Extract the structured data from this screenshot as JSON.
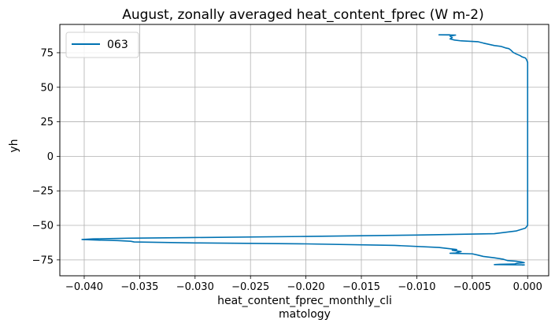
{
  "chart_data": {
    "type": "line",
    "title": "August, zonally averaged heat_content_fprec (W m-2)",
    "xlabel_lines": [
      "heat_content_fprec_monthly_cli",
      "matology"
    ],
    "ylabel": "yh",
    "xlim": [
      -0.0422,
      0.0019
    ],
    "ylim": [
      -86.5,
      95.5
    ],
    "xticks": [
      -0.04,
      -0.035,
      -0.03,
      -0.025,
      -0.02,
      -0.015,
      -0.01,
      -0.005,
      0.0
    ],
    "xtick_labels": [
      "−0.040",
      "−0.035",
      "−0.030",
      "−0.025",
      "−0.020",
      "−0.015",
      "−0.010",
      "−0.005",
      "0.000"
    ],
    "yticks": [
      -75,
      -50,
      -25,
      0,
      25,
      50,
      75
    ],
    "ytick_labels": [
      "−75",
      "−50",
      "−25",
      "0",
      "25",
      "50",
      "75"
    ],
    "grid": true,
    "legend_placement": "upper-left",
    "series": [
      {
        "name": "063",
        "color": "#0072b2",
        "points": [
          [
            -0.007,
            88.0
          ],
          [
            -0.008,
            88.0
          ],
          [
            -0.0065,
            87.8
          ],
          [
            -0.007,
            87.0
          ],
          [
            -0.0068,
            86.0
          ],
          [
            -0.007,
            85.0
          ],
          [
            -0.0066,
            84.2
          ],
          [
            -0.006,
            83.6
          ],
          [
            -0.0045,
            83.0
          ],
          [
            -0.004,
            82.0
          ],
          [
            -0.003,
            80.2
          ],
          [
            -0.0024,
            79.6
          ],
          [
            -0.002,
            78.5
          ],
          [
            -0.0017,
            78.0
          ],
          [
            -0.0015,
            76.8
          ],
          [
            -0.0013,
            75.2
          ],
          [
            -0.001,
            74.0
          ],
          [
            -0.0007,
            73.0
          ],
          [
            -0.0005,
            72.0
          ],
          [
            -0.0002,
            71.2
          ],
          [
            -0.0001,
            70.0
          ],
          [
            0.0,
            68.0
          ],
          [
            0.0,
            60.0
          ],
          [
            0.0,
            40.0
          ],
          [
            0.0,
            20.0
          ],
          [
            0.0,
            0.0
          ],
          [
            0.0,
            -20.0
          ],
          [
            0.0,
            -40.0
          ],
          [
            0.0,
            -50.0
          ],
          [
            -0.0002,
            -52.0
          ],
          [
            -0.001,
            -54.0
          ],
          [
            -0.003,
            -56.0
          ],
          [
            -0.01,
            -57.0
          ],
          [
            -0.02,
            -58.0
          ],
          [
            -0.03,
            -58.8
          ],
          [
            -0.036,
            -59.3
          ],
          [
            -0.0392,
            -59.8
          ],
          [
            -0.0402,
            -60.2
          ],
          [
            -0.039,
            -60.6
          ],
          [
            -0.037,
            -61.0
          ],
          [
            -0.0358,
            -61.5
          ],
          [
            -0.0355,
            -62.0
          ],
          [
            -0.03,
            -62.7
          ],
          [
            -0.02,
            -63.4
          ],
          [
            -0.012,
            -64.5
          ],
          [
            -0.008,
            -66.0
          ],
          [
            -0.0064,
            -67.5
          ],
          [
            -0.0068,
            -68.0
          ],
          [
            -0.006,
            -69.0
          ],
          [
            -0.0065,
            -70.0
          ],
          [
            -0.007,
            -70.2
          ],
          [
            -0.005,
            -70.6
          ],
          [
            -0.0045,
            -71.5
          ],
          [
            -0.004,
            -72.5
          ],
          [
            -0.003,
            -73.5
          ],
          [
            -0.0022,
            -74.5
          ],
          [
            -0.0018,
            -75.5
          ],
          [
            -0.001,
            -76.0
          ],
          [
            -0.0005,
            -76.6
          ],
          [
            -0.0003,
            -77.0
          ],
          [
            -0.001,
            -77.5
          ],
          [
            -0.0012,
            -78.0
          ],
          [
            -0.0025,
            -78.2
          ],
          [
            -0.003,
            -78.4
          ],
          [
            -0.0003,
            -78.6
          ],
          [
            -0.0005,
            -78.8
          ]
        ]
      }
    ]
  }
}
